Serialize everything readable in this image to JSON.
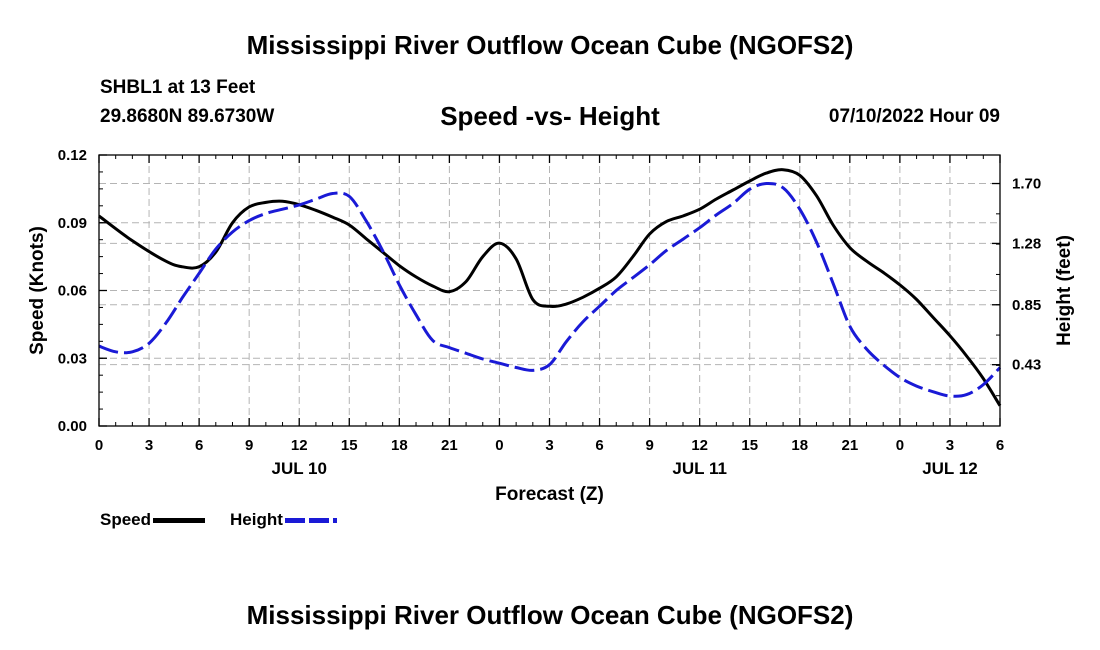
{
  "header": {
    "title": "Mississippi River Outflow Ocean Cube (NGOFS2)",
    "station": "SHBL1 at 13 Feet",
    "coords": "29.8680N  89.6730W",
    "subtitle": "Speed -vs- Height",
    "issued": "07/10/2022 Hour 09"
  },
  "footer": {
    "title": "Mississippi River Outflow Ocean Cube (NGOFS2)"
  },
  "legend": {
    "speed_label": "Speed",
    "height_label": "Height"
  },
  "colors": {
    "speed": "#000000",
    "height": "#1a1ad6",
    "grid": "#b4b4b4"
  },
  "chart_data": {
    "type": "line",
    "title": "Speed -vs- Height",
    "xlabel": "Forecast (Z)",
    "ylabel": "Speed (Knots)",
    "y2label": "Height (feet)",
    "xlim": [
      0,
      54
    ],
    "ylim": [
      0,
      0.12
    ],
    "y2lim": [
      0.0,
      1.9
    ],
    "x_ticks": [
      0,
      3,
      6,
      9,
      12,
      15,
      18,
      21,
      24,
      27,
      30,
      33,
      36,
      39,
      42,
      45,
      48,
      51,
      54
    ],
    "x_tick_labels": [
      "0",
      "3",
      "6",
      "9",
      "12",
      "15",
      "18",
      "21",
      "0",
      "3",
      "6",
      "9",
      "12",
      "15",
      "18",
      "21",
      "0",
      "3",
      "6"
    ],
    "date_labels": [
      {
        "x": 12,
        "label": "JUL 10"
      },
      {
        "x": 36,
        "label": "JUL 11"
      },
      {
        "x": 51,
        "label": "JUL 12"
      }
    ],
    "y_ticks": [
      0.0,
      0.03,
      0.06,
      0.09,
      0.12
    ],
    "y_tick_labels": [
      "0.00",
      "0.03",
      "0.06",
      "0.09",
      "0.12"
    ],
    "y2_ticks": [
      0.43,
      0.85,
      1.28,
      1.7
    ],
    "y2_tick_labels": [
      "0.43",
      "0.85",
      "1.28",
      "1.70"
    ],
    "series": [
      {
        "name": "Speed",
        "axis": "left",
        "style": "solid",
        "x": [
          0,
          2,
          4,
          5,
          6,
          7,
          8,
          9,
          10,
          11,
          12,
          13,
          14,
          15,
          16,
          17,
          18,
          19,
          20,
          21,
          22,
          23,
          24,
          25,
          26,
          27,
          28,
          29,
          30,
          31,
          32,
          33,
          34,
          35,
          36,
          37,
          38,
          39,
          40,
          41,
          42,
          43,
          44,
          45,
          46,
          47,
          48,
          49,
          50,
          51,
          52,
          53,
          54
        ],
        "values": [
          0.093,
          0.082,
          0.073,
          0.0705,
          0.0705,
          0.077,
          0.09,
          0.097,
          0.099,
          0.0995,
          0.098,
          0.0955,
          0.0925,
          0.089,
          0.083,
          0.077,
          0.071,
          0.066,
          0.062,
          0.0595,
          0.064,
          0.075,
          0.081,
          0.074,
          0.056,
          0.053,
          0.054,
          0.057,
          0.061,
          0.066,
          0.075,
          0.085,
          0.0905,
          0.093,
          0.096,
          0.1005,
          0.1045,
          0.1085,
          0.112,
          0.1135,
          0.111,
          0.102,
          0.089,
          0.079,
          0.073,
          0.068,
          0.0625,
          0.056,
          0.048,
          0.04,
          0.031,
          0.021,
          0.009
        ]
      },
      {
        "name": "Height",
        "axis": "right",
        "style": "dashed",
        "x": [
          0,
          1,
          2,
          3,
          4,
          5,
          6,
          7,
          8,
          9,
          10,
          11,
          12,
          13,
          14,
          15,
          16,
          17,
          18,
          19,
          20,
          21,
          22,
          23,
          24,
          25,
          26,
          27,
          28,
          29,
          30,
          31,
          32,
          33,
          34,
          35,
          36,
          37,
          38,
          39,
          40,
          41,
          42,
          43,
          44,
          45,
          46,
          47,
          48,
          49,
          50,
          51,
          52,
          53,
          54
        ],
        "values": [
          0.56,
          0.52,
          0.52,
          0.58,
          0.72,
          0.9,
          1.07,
          1.24,
          1.36,
          1.44,
          1.49,
          1.52,
          1.55,
          1.59,
          1.63,
          1.61,
          1.44,
          1.23,
          0.99,
          0.78,
          0.6,
          0.55,
          0.51,
          0.47,
          0.44,
          0.41,
          0.39,
          0.43,
          0.59,
          0.73,
          0.84,
          0.95,
          1.04,
          1.13,
          1.23,
          1.31,
          1.39,
          1.48,
          1.56,
          1.66,
          1.7,
          1.67,
          1.52,
          1.29,
          1.0,
          0.7,
          0.54,
          0.43,
          0.34,
          0.28,
          0.24,
          0.21,
          0.22,
          0.29,
          0.41
        ]
      }
    ]
  }
}
